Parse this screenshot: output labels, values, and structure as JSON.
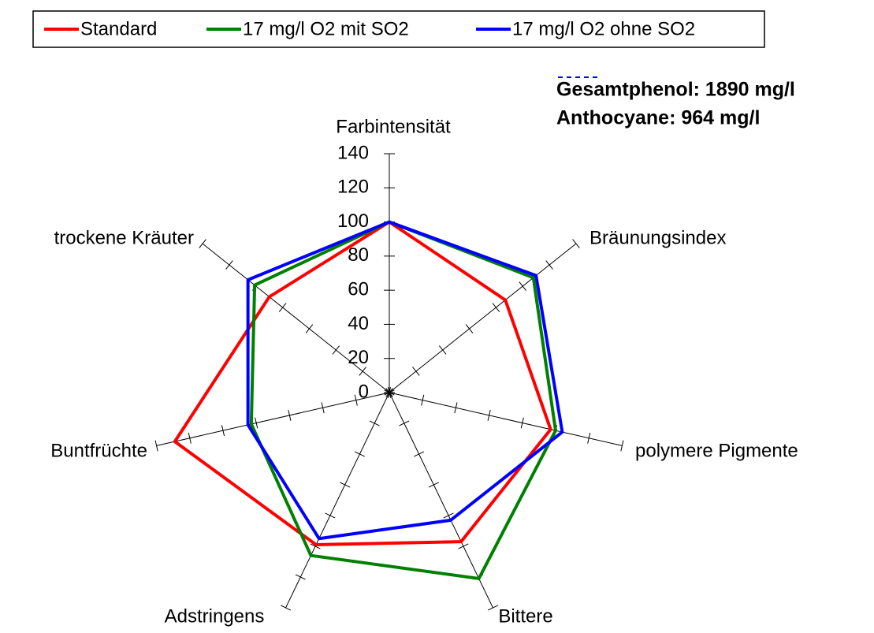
{
  "chart_data": {
    "type": "radar",
    "categories": [
      "Farbintensität",
      "Bräunungsindex",
      "polymere Pigmente",
      "Bittere",
      "Adstringens",
      "Buntfrüchte",
      "trockene Kräuter"
    ],
    "series": [
      {
        "name": "Standard",
        "color": "#ff0000",
        "values": [
          100,
          87,
          97,
          97,
          99,
          129,
          90
        ]
      },
      {
        "name": "17 mg/l O2 mit SO2",
        "color": "#008000",
        "values": [
          100,
          108,
          100,
          121,
          106,
          83,
          101
        ]
      },
      {
        "name": "17 mg/l O2 ohne SO2",
        "color": "#0000ff",
        "values": [
          100,
          110,
          104,
          83,
          95,
          85,
          106
        ]
      }
    ],
    "ylim": [
      0,
      140
    ],
    "yticks": [
      0,
      20,
      40,
      60,
      80,
      100,
      120,
      140
    ],
    "annotations": [
      "Gesamtphenol:  1890 mg/l",
      "Anthocyane:  964 mg/l"
    ],
    "legend": "top"
  }
}
